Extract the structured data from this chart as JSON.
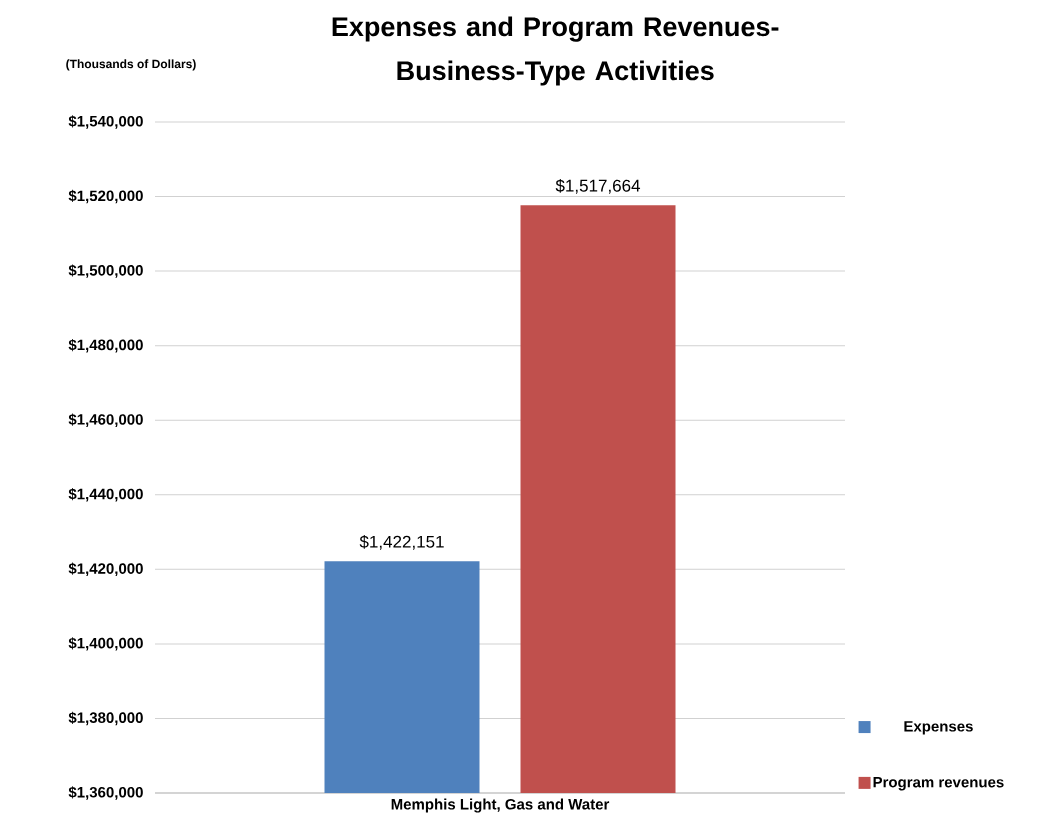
{
  "chart_data": {
    "type": "bar",
    "title": "Expenses and Program Revenues-Business-Type Activities",
    "ylabel": "(Thousands of Dollars)",
    "categories": [
      "Memphis Light, Gas and Water"
    ],
    "series": [
      {
        "name": "Expenses",
        "color": "#4f81bd",
        "values": [
          1422151
        ],
        "value_labels": [
          "$1,422,151"
        ]
      },
      {
        "name": "Program revenues",
        "color": "#c0504d",
        "values": [
          1517664
        ],
        "value_labels": [
          "$1,517,664"
        ]
      }
    ],
    "ylim": [
      1360000,
      1540000
    ],
    "yticks": [
      {
        "value": 1360000,
        "label": "$1,360,000"
      },
      {
        "value": 1380000,
        "label": "$1,380,000"
      },
      {
        "value": 1400000,
        "label": "$1,400,000"
      },
      {
        "value": 1420000,
        "label": "$1,420,000"
      },
      {
        "value": 1440000,
        "label": "$1,440,000"
      },
      {
        "value": 1460000,
        "label": "$1,460,000"
      },
      {
        "value": 1480000,
        "label": "$1,480,000"
      },
      {
        "value": 1500000,
        "label": "$1,500,000"
      },
      {
        "value": 1520000,
        "label": "$1,520,000"
      },
      {
        "value": 1540000,
        "label": "$1,540,000"
      }
    ],
    "grid": "y",
    "legend": "bottom right"
  }
}
